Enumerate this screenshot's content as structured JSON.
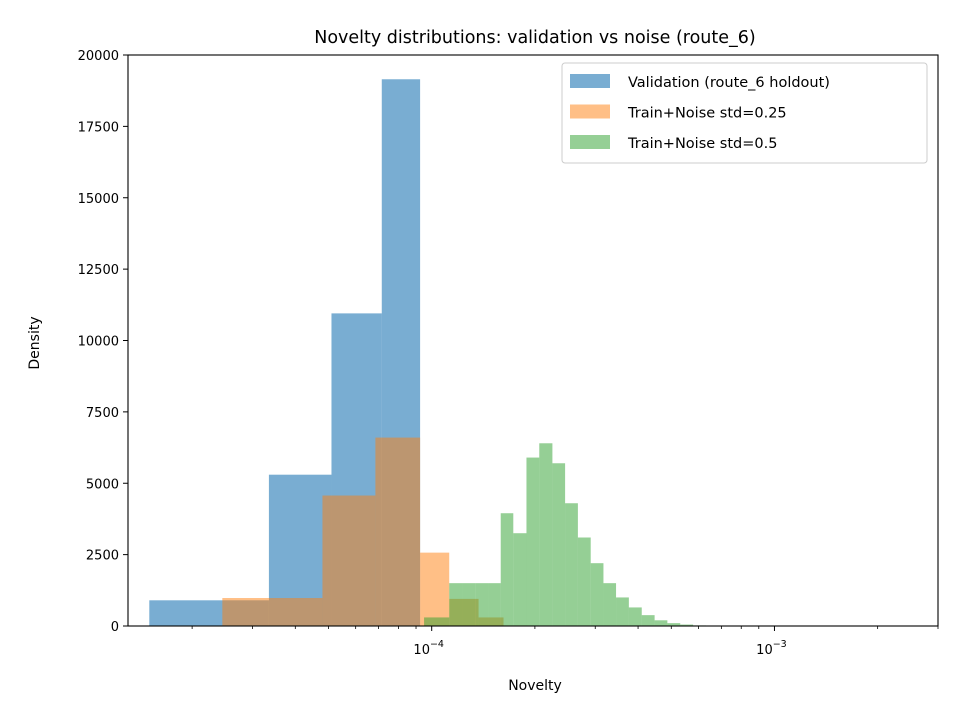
{
  "chart_data": {
    "type": "histogram",
    "title": "Novelty distributions: validation vs noise (route_6)",
    "xlabel": "Novelty",
    "ylabel": "Density",
    "xscale": "log",
    "xlim": [
      1.3e-05,
      0.003
    ],
    "ylim": [
      0,
      20000
    ],
    "y_ticks": [
      0,
      2500,
      5000,
      7500,
      10000,
      12500,
      15000,
      17500,
      20000
    ],
    "y_tick_labels": [
      "0",
      "2500",
      "5000",
      "7500",
      "10000",
      "12500",
      "15000",
      "17500",
      "20000"
    ],
    "x_major_ticks": [
      {
        "value": 0.0001,
        "base": "10",
        "exp": "−4"
      },
      {
        "value": 0.001,
        "base": "10",
        "exp": "−3"
      }
    ],
    "grid": false,
    "legend_position": "top-right",
    "series": [
      {
        "name": "Validation (route_6 holdout)",
        "color": "#1f77b4",
        "opacity": 0.6,
        "edges": [
          1.5e-05,
          3.35e-05,
          5.1e-05,
          7.15e-05,
          9.25e-05
        ],
        "values": [
          900,
          5300,
          10950,
          19150
        ]
      },
      {
        "name": "Train+Noise std=0.25",
        "color": "#ff7f0e",
        "opacity": 0.5,
        "edges": [
          2.45e-05,
          4.8e-05,
          6.85e-05,
          9.25e-05,
          0.0001125,
          0.000137,
          0.000162,
          0.00019
        ],
        "values": [
          980,
          4570,
          6600,
          2570,
          950,
          300,
          20
        ]
      },
      {
        "name": "Train+Noise std=0.5",
        "color": "#2ca02c",
        "opacity": 0.5,
        "edges": [
          9.5e-05,
          0.0001125,
          0.000123,
          0.000134,
          0.000146,
          0.000159,
          0.000173,
          0.000189,
          0.000206,
          0.000225,
          0.000245,
          0.000267,
          0.000291,
          0.000317,
          0.000345,
          0.000376,
          0.00041,
          0.000447,
          0.000487,
          0.000531,
          0.000579,
          0.000631,
          0.000688
        ],
        "values": [
          300,
          1500,
          1500,
          1500,
          1500,
          3950,
          3250,
          5900,
          6400,
          5700,
          4300,
          3100,
          2200,
          1500,
          1000,
          650,
          380,
          200,
          100,
          50,
          20,
          10
        ]
      }
    ]
  }
}
